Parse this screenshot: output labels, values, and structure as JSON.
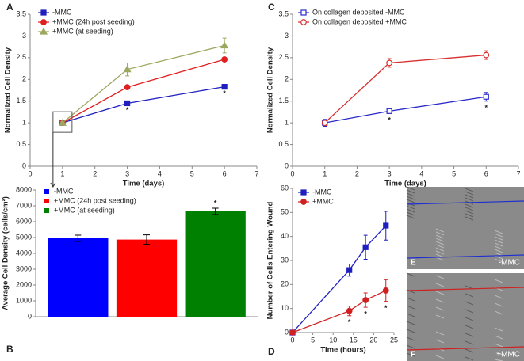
{
  "chart_data": [
    {
      "type": "line",
      "label": "A",
      "xlabel": "Time (days)",
      "ylabel": "Normalized Cell Density",
      "x": [
        1,
        3,
        6
      ],
      "xlim": [
        0,
        7
      ],
      "xticks": [
        0,
        1,
        2,
        3,
        4,
        5,
        6,
        7
      ],
      "ylim": [
        0,
        3.5
      ],
      "yticks": [
        0,
        0.5,
        1,
        1.5,
        2,
        2.5,
        3,
        3.5
      ],
      "series": [
        {
          "name": "-MMC",
          "color": "#1f1fbf",
          "marker": "square",
          "filled": true,
          "values": [
            1,
            1.45,
            1.83
          ],
          "significance": [
            null,
            "*",
            "*"
          ]
        },
        {
          "name": "+MMC (24h post seeding)",
          "color": "#e02020",
          "marker": "circle",
          "filled": true,
          "values": [
            1,
            1.82,
            2.46
          ]
        },
        {
          "name": "+MMC (at seeding)",
          "color": "#9aa860",
          "marker": "triangle",
          "filled": true,
          "values": [
            1,
            2.23,
            2.78
          ],
          "errors": [
            0.03,
            0.15,
            0.17
          ]
        }
      ]
    },
    {
      "type": "bar",
      "label": "B",
      "ylabel": "Average Cell Density (cells/cm²)",
      "categories": [
        null
      ],
      "ylim": [
        0,
        8000
      ],
      "yticks": [
        0,
        1000,
        2000,
        3000,
        4000,
        5000,
        6000,
        7000,
        8000
      ],
      "series": [
        {
          "name": "-MMC",
          "color": "#0000ff",
          "values": [
            4950
          ],
          "errors": [
            200
          ]
        },
        {
          "name": "+MMC (24h post seeding)",
          "color": "#ff0000",
          "values": [
            4870
          ],
          "errors": [
            300
          ]
        },
        {
          "name": "+MMC (at seeding)",
          "color": "#008000",
          "values": [
            6650
          ],
          "errors": [
            200
          ],
          "significance": [
            "*"
          ]
        }
      ]
    },
    {
      "type": "line",
      "label": "C",
      "xlabel": "Time (days)",
      "ylabel": "Normalized Cell Density",
      "x": [
        1,
        3,
        6
      ],
      "xlim": [
        0,
        7
      ],
      "xticks": [
        0,
        1,
        2,
        3,
        4,
        5,
        6,
        7
      ],
      "ylim": [
        0,
        3.5
      ],
      "yticks": [
        0,
        0.5,
        1,
        1.5,
        2,
        2.5,
        3,
        3.5
      ],
      "series": [
        {
          "name": "On collagen deposited -MMC",
          "color": "#2a2ac8",
          "marker": "square",
          "filled": false,
          "values": [
            1,
            1.27,
            1.6
          ],
          "errors": [
            0.08,
            0.05,
            0.1
          ],
          "significance": [
            null,
            "*",
            "*"
          ]
        },
        {
          "name": "On collagen deposited +MMC",
          "color": "#d83030",
          "marker": "circle",
          "filled": false,
          "values": [
            1,
            2.38,
            2.56
          ],
          "errors": [
            0.06,
            0.1,
            0.1
          ]
        }
      ]
    },
    {
      "type": "line",
      "label": "D",
      "xlabel": "Time (hours)",
      "ylabel": "Number of Cells Entering Wound",
      "x": [
        0,
        14,
        18,
        23
      ],
      "xlim": [
        0,
        25
      ],
      "xticks": [
        0,
        5,
        10,
        15,
        20,
        25
      ],
      "ylim": [
        0,
        60
      ],
      "yticks": [
        0,
        10,
        20,
        30,
        40,
        50,
        60
      ],
      "series": [
        {
          "name": "-MMC",
          "color": "#1f1fbf",
          "marker": "square",
          "filled": true,
          "values": [
            0,
            26,
            35.5,
            44.5
          ],
          "errors": [
            0,
            2.5,
            5,
            6
          ]
        },
        {
          "name": "+MMC",
          "color": "#d02020",
          "marker": "circle",
          "filled": true,
          "values": [
            0,
            9,
            13.5,
            17.5
          ],
          "errors": [
            0,
            2,
            3,
            4.5
          ],
          "significance": [
            null,
            "*",
            "*",
            "*"
          ]
        }
      ]
    }
  ],
  "images": [
    {
      "label": "E",
      "caption": "-MMC",
      "line_color": "#2030d0"
    },
    {
      "label": "F",
      "caption": "+MMC",
      "line_color": "#d02020"
    }
  ]
}
